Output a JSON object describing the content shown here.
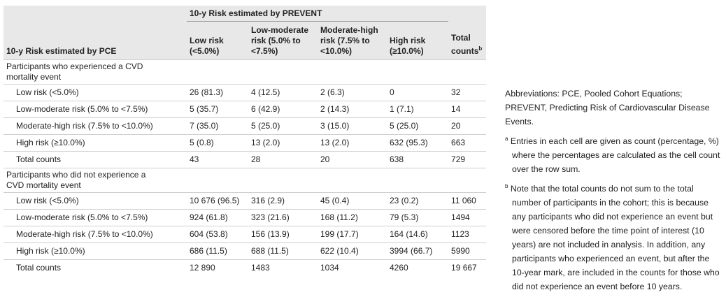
{
  "table": {
    "prevent_label": "10-y Risk estimated by PREVENT",
    "pce_label": "10-y Risk estimated by PCE",
    "columns": [
      "Low risk (<5.0%)",
      "Low-moderate risk (5.0% to <7.5%)",
      "Moderate-high risk (7.5% to <10.0%)",
      "High risk (≥10.0%)"
    ],
    "total_label": "Total counts",
    "total_sup": "b",
    "sections": [
      {
        "title": "Participants who experienced a CVD mortality event",
        "rows": [
          {
            "label": "Low risk (<5.0%)",
            "cells": [
              "26 (81.3)",
              "4 (12.5)",
              "2 (6.3)",
              "0",
              "32"
            ]
          },
          {
            "label": "Low-moderate risk (5.0% to <7.5%)",
            "cells": [
              "5 (35.7)",
              "6 (42.9)",
              "2 (14.3)",
              "1 (7.1)",
              "14"
            ]
          },
          {
            "label": "Moderate-high risk (7.5% to <10.0%)",
            "cells": [
              "7 (35.0)",
              "5 (25.0)",
              "3 (15.0)",
              "5 (25.0)",
              "20"
            ]
          },
          {
            "label": "High risk (≥10.0%)",
            "cells": [
              "5 (0.8)",
              "13 (2.0)",
              "13 (2.0)",
              "632 (95.3)",
              "663"
            ]
          },
          {
            "label": "Total counts",
            "cells": [
              "43",
              "28",
              "20",
              "638",
              "729"
            ]
          }
        ]
      },
      {
        "title": "Participants who did not experience a CVD mortality event",
        "rows": [
          {
            "label": "Low risk (<5.0%)",
            "cells": [
              "10 676 (96.5)",
              "316 (2.9)",
              "45 (0.4)",
              "23 (0.2)",
              "11 060"
            ]
          },
          {
            "label": "Low-moderate risk (5.0% to <7.5%)",
            "cells": [
              "924 (61.8)",
              "323 (21.6)",
              "168 (11.2)",
              "79 (5.3)",
              "1494"
            ]
          },
          {
            "label": "Moderate-high risk (7.5% to <10.0%)",
            "cells": [
              "604 (53.8)",
              "156 (13.9)",
              "199 (17.7)",
              "164 (14.6)",
              "1123"
            ]
          },
          {
            "label": "High risk (≥10.0%)",
            "cells": [
              "686 (11.5)",
              "688 (11.5)",
              "622 (10.4)",
              "3994 (66.7)",
              "5990"
            ]
          },
          {
            "label": "Total counts",
            "cells": [
              "12 890",
              "1483",
              "1034",
              "4260",
              "19 667"
            ]
          }
        ]
      }
    ]
  },
  "notes": {
    "abbreviations": "Abbreviations: PCE, Pooled Cohort Equations; PREVENT, Predicting Risk of Cardiovascular Disease Events.",
    "footnotes": [
      {
        "mark": "a",
        "text": "Entries in each cell are given as count (percentage, %) where the percentages are calculated as the cell count over the row sum."
      },
      {
        "mark": "b",
        "text": "Note that the total counts do not sum to the total number of participants in the cohort; this is because any participants who did not experience an event but were censored before the time point of interest (10 years) are not included in analysis. In addition, any participants who experienced an event, but after the 10-year mark, are included in the counts for those who did not experience an event before 10 years."
      }
    ]
  }
}
